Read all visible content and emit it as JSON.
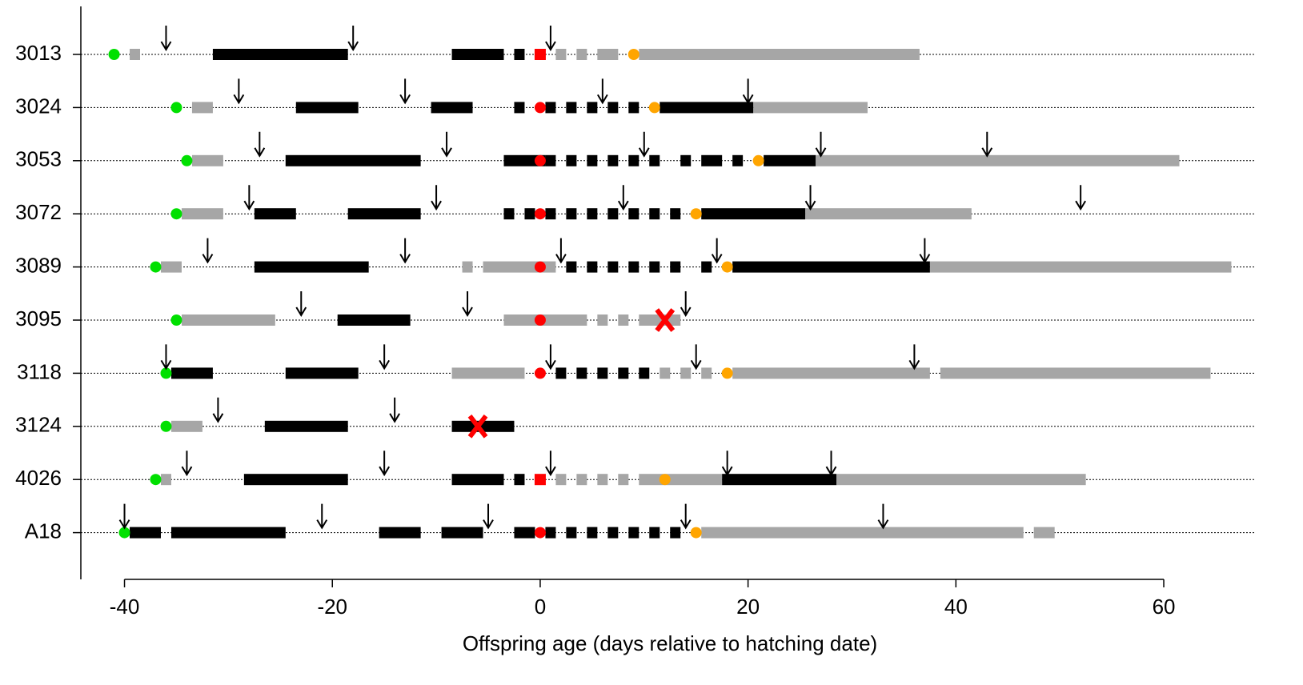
{
  "chart_data": {
    "type": "timeline",
    "xlabel": "Offspring age (days relative to hatching date)",
    "xlim": [
      -44.2,
      68.7
    ],
    "xticks": [
      -40,
      -20,
      0,
      20,
      40,
      60
    ],
    "colors": {
      "start": "#00e000",
      "hatch": "#ff0000",
      "fledge": "#ffa500",
      "black": "#000000",
      "grey": "#a6a6a6",
      "fail": "#ff0000"
    },
    "rows": [
      {
        "label": "3013",
        "start": -41,
        "hatch": 0,
        "hatch_square": true,
        "fledge": 9,
        "black": [
          [
            -31,
            -19
          ],
          [
            -8,
            -4
          ],
          [
            -2,
            -2
          ]
        ],
        "grey": [
          [
            -39,
            -39
          ],
          [
            2,
            2
          ],
          [
            4,
            4
          ],
          [
            6,
            7
          ],
          [
            10,
            36
          ]
        ],
        "arrows": [
          -36,
          -18,
          1
        ]
      },
      {
        "label": "3024",
        "start": -35,
        "hatch": 0,
        "fledge": 11,
        "black": [
          [
            -23,
            -18
          ],
          [
            -10,
            -7
          ],
          [
            -2,
            -2
          ],
          [
            1,
            1
          ],
          [
            3,
            3
          ],
          [
            5,
            5
          ],
          [
            7,
            7
          ],
          [
            9,
            9
          ],
          [
            12,
            20
          ]
        ],
        "grey": [
          [
            -33,
            -32
          ],
          [
            21,
            31
          ]
        ],
        "arrows": [
          -29,
          -13,
          6,
          20
        ]
      },
      {
        "label": "3053",
        "start": -34,
        "hatch": 0,
        "fledge": 21,
        "black": [
          [
            -24,
            -12
          ],
          [
            -3,
            0
          ],
          [
            1,
            1
          ],
          [
            3,
            3
          ],
          [
            5,
            5
          ],
          [
            7,
            7
          ],
          [
            9,
            9
          ],
          [
            11,
            11
          ],
          [
            14,
            14
          ],
          [
            16,
            17
          ],
          [
            19,
            19
          ],
          [
            22,
            26
          ]
        ],
        "grey": [
          [
            -33,
            -31
          ],
          [
            27,
            61
          ]
        ],
        "arrows": [
          -27,
          -9,
          10,
          27,
          43
        ]
      },
      {
        "label": "3072",
        "start": -35,
        "hatch": 0,
        "fledge": 15,
        "black": [
          [
            -27,
            -24
          ],
          [
            -18,
            -12
          ],
          [
            -3,
            -3
          ],
          [
            -1,
            -1
          ],
          [
            1,
            1
          ],
          [
            3,
            3
          ],
          [
            5,
            5
          ],
          [
            7,
            7
          ],
          [
            9,
            9
          ],
          [
            11,
            11
          ],
          [
            13,
            13
          ],
          [
            16,
            25
          ]
        ],
        "grey": [
          [
            -34,
            -31
          ],
          [
            26,
            41
          ]
        ],
        "arrows": [
          -28,
          -10,
          8,
          26,
          52
        ]
      },
      {
        "label": "3089",
        "start": -37,
        "hatch": 0,
        "fledge": 18,
        "black": [
          [
            -27,
            -17
          ],
          [
            3,
            3
          ],
          [
            5,
            5
          ],
          [
            7,
            7
          ],
          [
            9,
            9
          ],
          [
            11,
            11
          ],
          [
            13,
            13
          ],
          [
            16,
            16
          ],
          [
            19,
            37
          ]
        ],
        "grey": [
          [
            -36,
            -35
          ],
          [
            -7,
            -7
          ],
          [
            -5,
            1
          ],
          [
            38,
            66
          ]
        ],
        "arrows": [
          -32,
          -13,
          2,
          17,
          37
        ]
      },
      {
        "label": "3095",
        "start": -35,
        "hatch": 0,
        "fail": 12,
        "black": [
          [
            -19,
            -13
          ]
        ],
        "grey": [
          [
            -34,
            -26
          ],
          [
            -3,
            4
          ],
          [
            6,
            6
          ],
          [
            8,
            8
          ],
          [
            10,
            13
          ]
        ],
        "arrows": [
          -23,
          -7,
          14
        ]
      },
      {
        "label": "3118",
        "start": -36,
        "hatch": 0,
        "fledge": 18,
        "black": [
          [
            -35,
            -32
          ],
          [
            -24,
            -18
          ],
          [
            2,
            2
          ],
          [
            4,
            4
          ],
          [
            6,
            6
          ],
          [
            8,
            8
          ],
          [
            10,
            10
          ]
        ],
        "grey": [
          [
            -8,
            -2
          ],
          [
            12,
            12
          ],
          [
            14,
            14
          ],
          [
            16,
            16
          ],
          [
            19,
            37
          ],
          [
            39,
            64
          ]
        ],
        "arrows": [
          -36,
          -15,
          1,
          15,
          36
        ]
      },
      {
        "label": "3124",
        "start": -36,
        "fail": -6,
        "black": [
          [
            -26,
            -19
          ],
          [
            -8,
            -3
          ]
        ],
        "grey": [
          [
            -35,
            -33
          ]
        ],
        "arrows": [
          -31,
          -14
        ]
      },
      {
        "label": "4026",
        "start": -37,
        "hatch": 0,
        "hatch_square": true,
        "fledge": 12,
        "black": [
          [
            -28,
            -19
          ],
          [
            -8,
            -4
          ],
          [
            -2,
            -2
          ],
          [
            18,
            28
          ]
        ],
        "grey": [
          [
            -36,
            -36
          ],
          [
            2,
            2
          ],
          [
            4,
            4
          ],
          [
            6,
            6
          ],
          [
            8,
            8
          ],
          [
            10,
            17
          ],
          [
            29,
            52
          ]
        ],
        "arrows": [
          -34,
          -15,
          1,
          18,
          28
        ]
      },
      {
        "label": "A18",
        "start": -40,
        "hatch": 0,
        "fledge": 15,
        "black": [
          [
            -39,
            -37
          ],
          [
            -35,
            -25
          ],
          [
            -15,
            -12
          ],
          [
            -9,
            -6
          ],
          [
            -2,
            -1
          ],
          [
            1,
            1
          ],
          [
            3,
            3
          ],
          [
            5,
            5
          ],
          [
            7,
            7
          ],
          [
            9,
            9
          ],
          [
            11,
            11
          ],
          [
            13,
            13
          ]
        ],
        "grey": [
          [
            16,
            46
          ],
          [
            48,
            49
          ]
        ],
        "arrows": [
          -40,
          -21,
          -5,
          14,
          33
        ]
      }
    ]
  }
}
